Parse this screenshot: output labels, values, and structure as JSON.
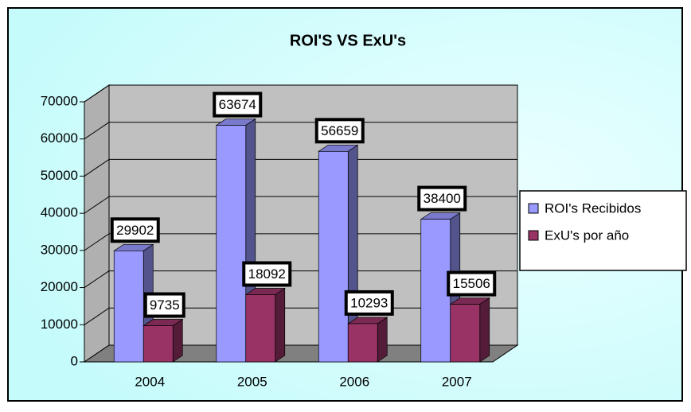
{
  "chart_data": {
    "type": "bar",
    "title": "ROI'S VS ExU's",
    "categories": [
      "2004",
      "2005",
      "2006",
      "2007"
    ],
    "series": [
      {
        "name": "ROI's Recibidos",
        "color": "#9999ff",
        "values": [
          29902,
          63674,
          56659,
          38400
        ]
      },
      {
        "name": "ExU's por año",
        "color": "#993366",
        "values": [
          9735,
          18092,
          10293,
          15506
        ]
      }
    ],
    "ylim": [
      0,
      70000
    ],
    "yticks": [
      0,
      10000,
      20000,
      30000,
      40000,
      50000,
      60000,
      70000
    ],
    "grid": true,
    "legend": "right"
  }
}
